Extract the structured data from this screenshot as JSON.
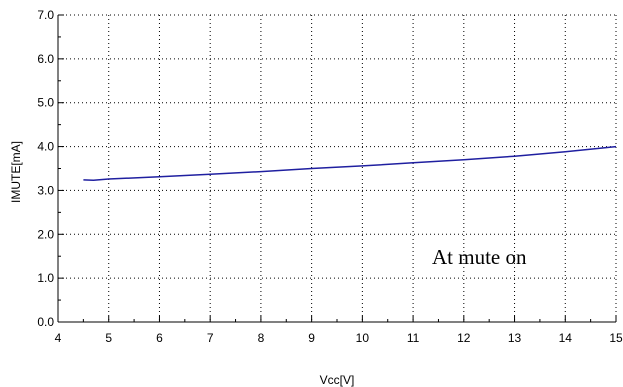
{
  "chart_data": {
    "type": "line",
    "xlabel": "Vcc[V]",
    "ylabel": "IMUTE[mA]",
    "xlim": [
      4,
      15
    ],
    "ylim": [
      0,
      7
    ],
    "x_ticks": [
      "4",
      "5",
      "6",
      "7",
      "8",
      "9",
      "10",
      "11",
      "12",
      "13",
      "14",
      "15"
    ],
    "y_ticks": [
      "0.0",
      "1.0",
      "2.0",
      "3.0",
      "4.0",
      "5.0",
      "6.0",
      "7.0"
    ],
    "grid": true,
    "annotation": "At mute on",
    "series": [
      {
        "color": "#1f1fa0",
        "x": [
          4.5,
          4.7,
          5,
          6,
          7,
          8,
          9,
          10,
          11,
          12,
          13,
          14,
          15
        ],
        "y": [
          3.24,
          3.23,
          3.26,
          3.31,
          3.37,
          3.43,
          3.5,
          3.56,
          3.63,
          3.7,
          3.78,
          3.88,
          4.0
        ]
      }
    ]
  }
}
